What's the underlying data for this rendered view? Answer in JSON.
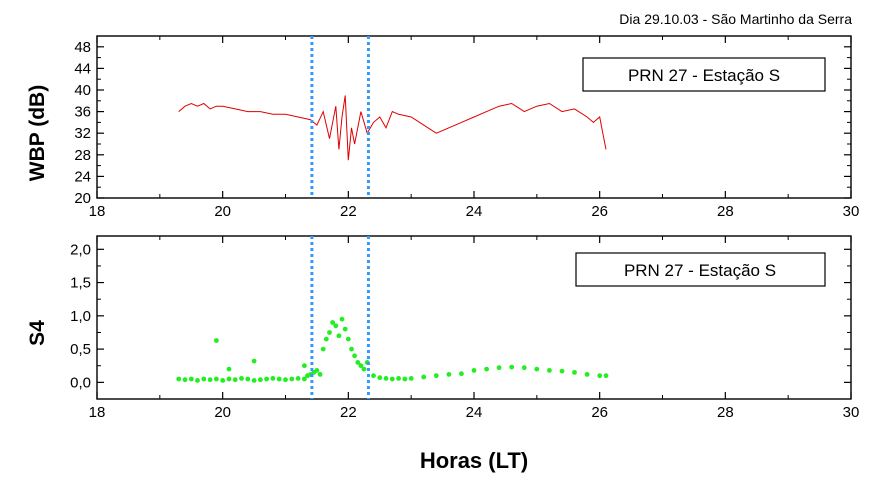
{
  "caption": "Dia 29.10.03 - São Martinho da Serra",
  "colors": {
    "wbp_line": "#e00000",
    "s4_points": "#22ee22",
    "marker_lines": "#3399ff",
    "axis": "#000000"
  },
  "chart_data": [
    {
      "type": "line",
      "ylabel": "WBP (dB)",
      "legend": "PRN 27 - Estação S",
      "legend_position": "top-right",
      "xlim": [
        18,
        30
      ],
      "ylim": [
        20,
        50
      ],
      "x_ticks": [
        "18",
        "20",
        "22",
        "24",
        "26",
        "28",
        "30"
      ],
      "y_ticks": [
        "20",
        "24",
        "28",
        "32",
        "36",
        "40",
        "44",
        "48"
      ],
      "grid": false,
      "vertical_markers": [
        21.42,
        22.32
      ],
      "series": [
        {
          "x": [
            19.3,
            19.4,
            19.5,
            19.6,
            19.7,
            19.8,
            19.9,
            20.0,
            20.2,
            20.4,
            20.6,
            20.8,
            21.0,
            21.2,
            21.4,
            21.5,
            21.6,
            21.7,
            21.8,
            21.85,
            21.9,
            21.95,
            22.0,
            22.05,
            22.1,
            22.2,
            22.3,
            22.4,
            22.5,
            22.6,
            22.7,
            22.8,
            23.0,
            23.2,
            23.4,
            23.6,
            23.8,
            24.0,
            24.2,
            24.4,
            24.6,
            24.8,
            25.0,
            25.2,
            25.4,
            25.6,
            25.8,
            25.9,
            26.0,
            26.05,
            26.1
          ],
          "y": [
            36,
            37,
            37.5,
            37,
            37.5,
            36.5,
            37,
            37,
            36.5,
            36,
            36,
            35.5,
            35.5,
            35,
            34.5,
            33.5,
            36,
            31,
            37,
            29,
            35,
            39,
            27,
            33,
            30,
            36,
            32,
            34,
            35,
            33,
            36,
            35.5,
            35,
            33.5,
            32,
            33,
            34,
            35,
            36,
            37,
            37.5,
            36,
            37,
            37.5,
            36,
            36.5,
            35,
            34,
            35,
            32,
            29
          ]
        }
      ]
    },
    {
      "type": "scatter",
      "xlabel": "Horas (LT)",
      "ylabel": "S4",
      "legend": "PRN 27 - Estação S",
      "legend_position": "top-right",
      "xlim": [
        18,
        30
      ],
      "ylim": [
        -0.25,
        2.2
      ],
      "x_ticks": [
        "18",
        "20",
        "22",
        "24",
        "26",
        "28",
        "30"
      ],
      "y_ticks": [
        "0,0",
        "0,5",
        "1,0",
        "1,5",
        "2,0"
      ],
      "grid": false,
      "vertical_markers": [
        21.42,
        22.32
      ],
      "series": [
        {
          "x": [
            19.3,
            19.4,
            19.5,
            19.6,
            19.7,
            19.8,
            19.9,
            20.0,
            20.1,
            20.2,
            20.3,
            20.4,
            20.5,
            20.6,
            20.7,
            20.8,
            20.9,
            21.0,
            21.1,
            21.2,
            21.3,
            21.35,
            21.4,
            21.45,
            21.5,
            21.55,
            21.6,
            21.65,
            21.7,
            21.75,
            21.8,
            21.85,
            21.9,
            21.95,
            22.0,
            22.05,
            22.1,
            22.15,
            22.2,
            22.25,
            22.3,
            22.4,
            22.5,
            22.6,
            22.7,
            22.8,
            22.9,
            23.0,
            23.2,
            23.4,
            23.6,
            23.8,
            24.0,
            24.2,
            24.4,
            24.6,
            24.8,
            25.0,
            25.2,
            25.4,
            25.6,
            25.8,
            26.0,
            26.1,
            19.9,
            20.1,
            20.5,
            21.3
          ],
          "y": [
            0.05,
            0.04,
            0.05,
            0.03,
            0.05,
            0.04,
            0.05,
            0.03,
            0.05,
            0.04,
            0.06,
            0.05,
            0.03,
            0.04,
            0.05,
            0.06,
            0.05,
            0.04,
            0.05,
            0.06,
            0.05,
            0.1,
            0.12,
            0.15,
            0.18,
            0.12,
            0.5,
            0.65,
            0.75,
            0.9,
            0.85,
            0.7,
            0.95,
            0.8,
            0.65,
            0.5,
            0.4,
            0.3,
            0.25,
            0.2,
            0.3,
            0.1,
            0.07,
            0.06,
            0.05,
            0.06,
            0.05,
            0.06,
            0.08,
            0.1,
            0.12,
            0.13,
            0.18,
            0.2,
            0.22,
            0.23,
            0.22,
            0.2,
            0.18,
            0.17,
            0.15,
            0.12,
            0.1,
            0.1,
            0.63,
            0.2,
            0.32,
            0.25
          ]
        }
      ]
    }
  ]
}
